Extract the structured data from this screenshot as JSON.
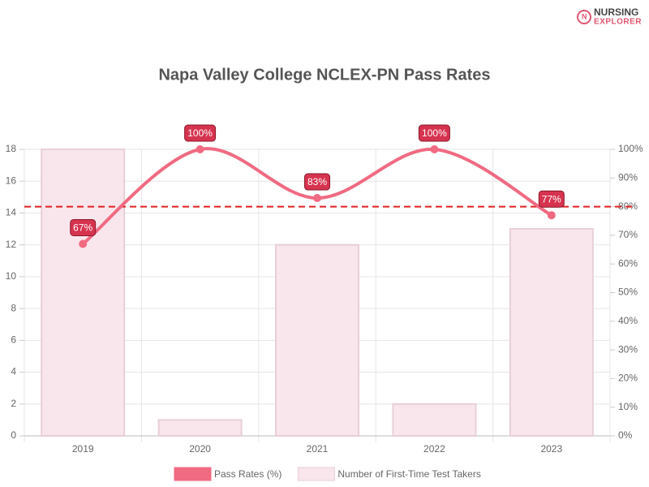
{
  "logo": [
    "NURSING",
    "EXPLORER"
  ],
  "chart_data": {
    "type": "bar-line",
    "title": "Napa Valley College NCLEX-PN Pass Rates",
    "categories": [
      "2019",
      "2020",
      "2021",
      "2022",
      "2023"
    ],
    "series": [
      {
        "name": "Pass Rates (%)",
        "type": "line",
        "axis": "y2",
        "color": "#f06a82",
        "values": [
          67,
          100,
          83,
          100,
          77
        ],
        "value_labels": [
          "67%",
          "100%",
          "83%",
          "100%",
          "77%"
        ]
      },
      {
        "name": "Number of First-Time Test Takers",
        "type": "bar",
        "axis": "y",
        "color": "#f9e6ec",
        "values": [
          18,
          1,
          12,
          2,
          13
        ]
      }
    ],
    "ylim": [
      0,
      18
    ],
    "yticks": [
      0,
      2,
      4,
      6,
      8,
      10,
      12,
      14,
      16,
      18
    ],
    "y2lim": [
      0,
      100
    ],
    "y2ticks": [
      {
        "value": 0,
        "label": "0%"
      },
      {
        "value": 10,
        "label": "10%"
      },
      {
        "value": 20,
        "label": "20%"
      },
      {
        "value": 30,
        "label": "30%"
      },
      {
        "value": 40,
        "label": "40%"
      },
      {
        "value": 50,
        "label": "50%"
      },
      {
        "value": 60,
        "label": "60%"
      },
      {
        "value": 70,
        "label": "70%"
      },
      {
        "value": 80,
        "label": "80%"
      },
      {
        "value": 90,
        "label": "90%"
      },
      {
        "value": 100,
        "label": "100%"
      }
    ],
    "reference_line": {
      "value": 80,
      "axis": "y2",
      "color": "#e02020"
    },
    "grid": true
  }
}
